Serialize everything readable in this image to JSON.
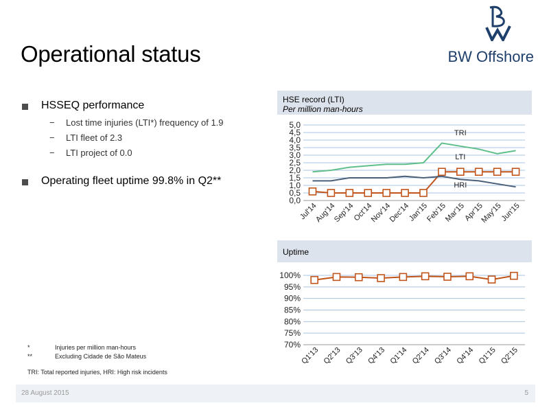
{
  "title": "Operational status",
  "logo": {
    "text": "BW Offshore"
  },
  "bullets": {
    "hsseq": {
      "label": "HSSEQ performance",
      "sub": [
        "Lost time injuries (LTI*) frequency of 1.9",
        "LTI fleet of 2.3",
        "LTI project of 0.0"
      ]
    },
    "uptime": {
      "label": "Operating fleet uptime 99.8% in Q2**"
    }
  },
  "panels": {
    "hse": {
      "title": "HSE record (LTI)",
      "subtitle": "Per million man-hours"
    },
    "uptime": {
      "title": "Uptime"
    }
  },
  "footnotes": [
    {
      "mark": "*",
      "text": "Injuries per million man-hours"
    },
    {
      "mark": "**",
      "text": "Excluding Cidade de São Mateus"
    }
  ],
  "abbrev_note": "TRI: Total reported injuries, HRI: High risk incidents",
  "footer": {
    "date": "28 August 2015",
    "page": "5"
  },
  "chart_data": [
    {
      "type": "line",
      "title": "HSE record (LTI)",
      "subtitle": "Per million man-hours",
      "categories": [
        "Jul'14",
        "Aug'14",
        "Sep'14",
        "Oct'14",
        "Nov'14",
        "Dec'14",
        "Jan'15",
        "Feb'15",
        "Mar'15",
        "Apr'15",
        "May'15",
        "Jun'15"
      ],
      "ylim": [
        0,
        5
      ],
      "yticks": [
        "0,0",
        "0,5",
        "1,0",
        "1,5",
        "2,0",
        "2,5",
        "3,0",
        "3,5",
        "4,0",
        "4,5",
        "5,0"
      ],
      "grid": true,
      "series": [
        {
          "name": "TRI",
          "color": "#5fbf8a",
          "marker": false,
          "values": [
            1.9,
            2.0,
            2.2,
            2.3,
            2.4,
            2.4,
            2.5,
            3.8,
            3.6,
            3.4,
            3.1,
            3.3
          ]
        },
        {
          "name": "LTI",
          "color": "#c0541a",
          "marker": true,
          "values": [
            0.6,
            0.5,
            0.5,
            0.5,
            0.5,
            0.5,
            0.5,
            1.9,
            1.9,
            1.9,
            1.9,
            1.9
          ]
        },
        {
          "name": "HRI",
          "color": "#4a5f78",
          "marker": false,
          "values": [
            1.3,
            1.3,
            1.5,
            1.5,
            1.5,
            1.6,
            1.5,
            1.6,
            1.4,
            1.3,
            1.1,
            0.9
          ]
        }
      ]
    },
    {
      "type": "line",
      "title": "Uptime",
      "categories": [
        "Q1'13",
        "Q2'13",
        "Q3'13",
        "Q4'13",
        "Q1'14",
        "Q2'14",
        "Q3'14",
        "Q4'14",
        "Q1'15",
        "Q2'15"
      ],
      "ylim": [
        70,
        100
      ],
      "yticks": [
        "70%",
        "75%",
        "80%",
        "85%",
        "90%",
        "95%",
        "100%"
      ],
      "grid": true,
      "series": [
        {
          "color": "#c0541a",
          "marker": true,
          "values": [
            98.0,
            99.3,
            99.2,
            98.8,
            99.3,
            99.6,
            99.4,
            99.6,
            98.2,
            99.8
          ]
        }
      ]
    }
  ]
}
